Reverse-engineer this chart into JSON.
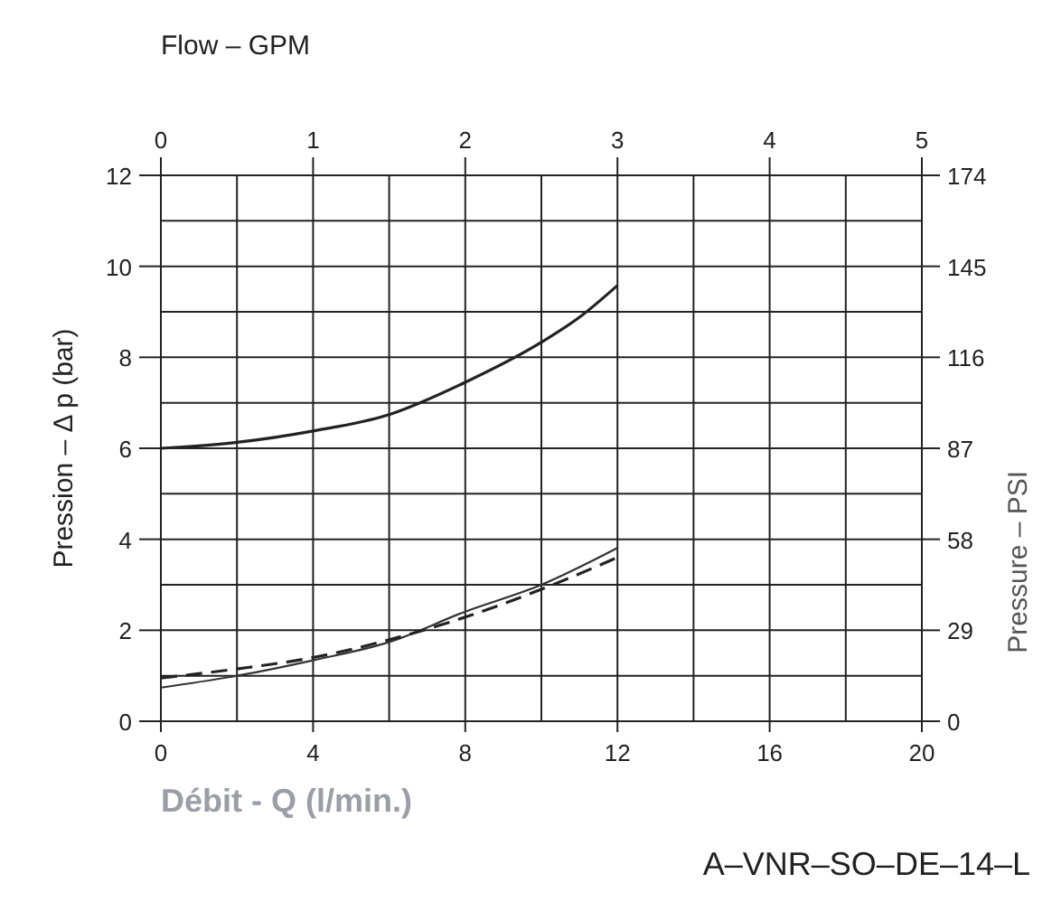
{
  "chart_data": {
    "type": "line",
    "x2label": "Flow – GPM",
    "xlabel": "Débit -  Q (l/min.)",
    "ylabel": "Pression  – Δ p (bar)",
    "y2label": "Pressure – PSI",
    "annotations": [
      "A–VNR–SO–DE–14–L"
    ],
    "xlim": [
      0,
      20
    ],
    "xticks": [
      0,
      {
        "value": 2,
        "label": null
      },
      4,
      {
        "value": 6,
        "label": null
      },
      8,
      {
        "value": 10,
        "label": null
      },
      12,
      {
        "value": 14,
        "label": null
      },
      16,
      {
        "value": 18,
        "label": null
      },
      20
    ],
    "x2lim": [
      0,
      5
    ],
    "x2ticks": [
      0,
      1,
      2,
      3,
      4,
      5
    ],
    "ylim": [
      0,
      12
    ],
    "yticks": [
      0,
      {
        "value": 1,
        "label": null
      },
      2,
      {
        "value": 3,
        "label": null
      },
      4,
      {
        "value": 5,
        "label": null
      },
      6,
      {
        "value": 7,
        "label": null
      },
      8,
      {
        "value": 9,
        "label": null
      },
      10,
      {
        "value": 11,
        "label": null
      },
      12
    ],
    "y2lim": [
      0,
      174
    ],
    "y2ticks": [
      0,
      29,
      58,
      87,
      116,
      145,
      174
    ],
    "grid": true,
    "series": [
      {
        "color": "#222222",
        "line_style": "solid",
        "x": [
          0,
          2,
          4,
          6,
          8,
          10,
          11,
          12
        ],
        "values": [
          6.0,
          6.13,
          6.38,
          6.74,
          7.45,
          8.33,
          8.88,
          9.58
        ]
      },
      {
        "color": "#333333",
        "line_style": "solid",
        "x": [
          0,
          2,
          4,
          6,
          8,
          10,
          12
        ],
        "values": [
          0.74,
          1.0,
          1.34,
          1.74,
          2.41,
          3.0,
          3.81
        ]
      },
      {
        "color": "#222222",
        "line_style": "dashed",
        "x": [
          0,
          2,
          4,
          6,
          8,
          10,
          12
        ],
        "values": [
          0.95,
          1.15,
          1.4,
          1.79,
          2.29,
          2.9,
          3.6
        ]
      }
    ]
  }
}
